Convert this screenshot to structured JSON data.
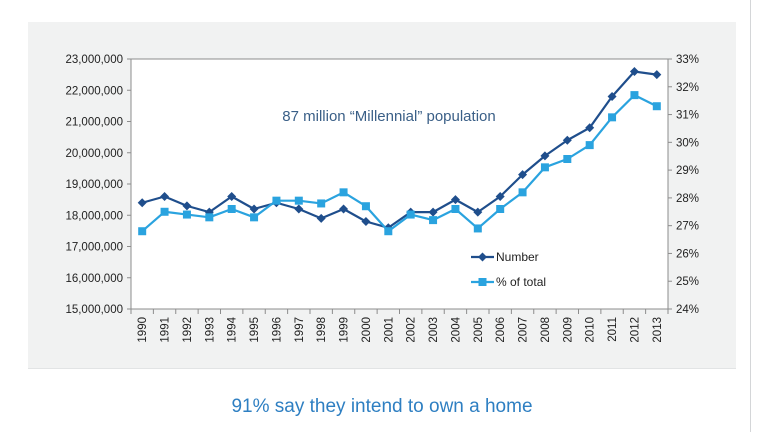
{
  "caption": "91% say they intend to own a home",
  "chart_data": {
    "type": "line",
    "title": "",
    "annotation": "87 million “Millennial” population",
    "categories": [
      "1990",
      "1991",
      "1992",
      "1993",
      "1994",
      "1995",
      "1996",
      "1997",
      "1998",
      "1999",
      "2000",
      "2001",
      "2002",
      "2003",
      "2004",
      "2005",
      "2006",
      "2007",
      "2008",
      "2009",
      "2010",
      "2011",
      "2012",
      "2013"
    ],
    "series": [
      {
        "name": "Number",
        "axis": "left",
        "color": "#1f4e8c",
        "marker": "diamond",
        "values": [
          18400000,
          18600000,
          18300000,
          18100000,
          18600000,
          18200000,
          18400000,
          18200000,
          17900000,
          18200000,
          17800000,
          17600000,
          18100000,
          18100000,
          18500000,
          18100000,
          18600000,
          19300000,
          19900000,
          20400000,
          20800000,
          21800000,
          22600000,
          22500000
        ]
      },
      {
        "name": "% of total",
        "axis": "right",
        "color": "#2aa3df",
        "marker": "square",
        "values": [
          26.8,
          27.5,
          27.4,
          27.3,
          27.6,
          27.3,
          27.9,
          27.9,
          27.8,
          28.2,
          27.7,
          26.8,
          27.4,
          27.2,
          27.6,
          26.9,
          27.6,
          28.2,
          29.1,
          29.4,
          29.9,
          30.9,
          31.7,
          31.3
        ]
      }
    ],
    "y_left": {
      "min": 15000000,
      "max": 23000000,
      "ticks": [
        15000000,
        16000000,
        17000000,
        18000000,
        19000000,
        20000000,
        21000000,
        22000000,
        23000000
      ],
      "tick_labels": [
        "15,000,000",
        "16,000,000",
        "17,000,000",
        "18,000,000",
        "19,000,000",
        "20,000,000",
        "21,000,000",
        "22,000,000",
        "23,000,000"
      ]
    },
    "y_right": {
      "min": 24,
      "max": 33,
      "ticks": [
        24,
        25,
        26,
        27,
        28,
        29,
        30,
        31,
        32,
        33
      ],
      "tick_labels": [
        "24%",
        "25%",
        "26%",
        "27%",
        "28%",
        "29%",
        "30%",
        "31%",
        "32%",
        "33%"
      ]
    },
    "grid": false,
    "legend_position": "lower-center",
    "xlabel": "",
    "ylabel": ""
  }
}
